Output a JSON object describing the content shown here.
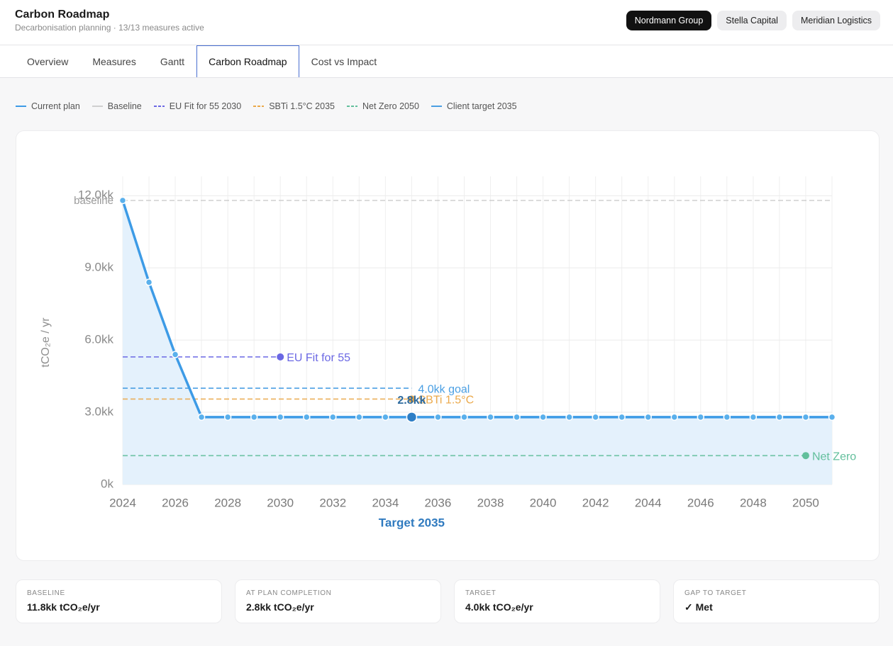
{
  "header": {
    "title": "Carbon Roadmap",
    "subtitle": "Decarbonisation planning · 13/13 measures active",
    "clients": [
      "Nordmann Group",
      "Stella Capital",
      "Meridian Logistics"
    ],
    "active_client": 0
  },
  "tabs": {
    "items": [
      "Overview",
      "Measures",
      "Gantt",
      "Carbon Roadmap",
      "Cost vs Impact"
    ],
    "active": 3
  },
  "chart_data": {
    "type": "line",
    "y_label": "tCO₂e / yr",
    "x": [
      2024,
      2025,
      2026,
      2027,
      2028,
      2029,
      2030,
      2031,
      2032,
      2033,
      2034,
      2035,
      2036,
      2037,
      2038,
      2039,
      2040,
      2041,
      2042,
      2043,
      2044,
      2045,
      2046,
      2047,
      2048,
      2049,
      2050,
      2051
    ],
    "series": [
      {
        "name": "Current plan",
        "color": "#3d9be6",
        "values": [
          11800,
          8400,
          5400,
          2800,
          2800,
          2800,
          2800,
          2800,
          2800,
          2800,
          2800,
          2800,
          2800,
          2800,
          2800,
          2800,
          2800,
          2800,
          2800,
          2800,
          2800,
          2800,
          2800,
          2800,
          2800,
          2800,
          2800,
          2800
        ],
        "value_labels": [
          null,
          null,
          null,
          null,
          null,
          null,
          null,
          null,
          null,
          null,
          null,
          "2.8kk",
          null,
          null,
          null,
          null,
          null,
          null,
          null,
          null,
          null,
          null,
          null,
          null,
          null,
          null,
          null,
          null
        ]
      }
    ],
    "reference_lines": [
      {
        "name": "Baseline",
        "color": "#cfcfcf",
        "value": 11800,
        "x_end": 2051,
        "label": "baseline",
        "label_position": "start",
        "marker": false,
        "legend_dashed": false
      },
      {
        "name": "EU Fit for 55 2030",
        "color": "#6b68e4",
        "value": 5300,
        "x_end": 2030,
        "label": "EU Fit for 55",
        "label_position": "end",
        "marker": true,
        "legend_dashed": true
      },
      {
        "name": "SBTi 1.5°C 2035",
        "color": "#eba94a",
        "value": 3550,
        "x_end": 2035,
        "label": "SBTi 1.5°C",
        "label_position": "end",
        "marker": true,
        "legend_dashed": true
      },
      {
        "name": "Net Zero 2050",
        "color": "#62bf9c",
        "value": 1200,
        "x_end": 2050,
        "label": "Net Zero",
        "label_position": "end",
        "marker": true,
        "legend_dashed": true
      },
      {
        "name": "Client target 2035",
        "color": "#4a9fe3",
        "value": 4000,
        "x_end": 2035,
        "label": "4.0kk goal",
        "label_position": "end",
        "marker": false,
        "legend_dashed": false
      }
    ],
    "target": {
      "x": 2035,
      "label": "Target 2035"
    },
    "xlim": [
      2024,
      2051
    ],
    "xticks": [
      2024,
      2026,
      2028,
      2030,
      2032,
      2034,
      2036,
      2038,
      2040,
      2042,
      2044,
      2046,
      2048,
      2050
    ],
    "ylim": [
      0,
      12800
    ],
    "yticks": [
      {
        "value": 0,
        "label": "0k"
      },
      {
        "value": 3000,
        "label": "3.0kk"
      },
      {
        "value": 6000,
        "label": "6.0kk"
      },
      {
        "value": 9000,
        "label": "9.0kk"
      },
      {
        "value": 12000,
        "label": "12.0kk"
      }
    ],
    "grid": true
  },
  "cards": [
    {
      "label": "BASELINE",
      "value": "11.8kk tCO₂e/yr"
    },
    {
      "label": "AT PLAN COMPLETION",
      "value": "2.8kk tCO₂e/yr"
    },
    {
      "label": "TARGET",
      "value": "4.0kk tCO₂e/yr"
    },
    {
      "label": "GAP TO TARGET",
      "value": "✓ Met"
    }
  ]
}
